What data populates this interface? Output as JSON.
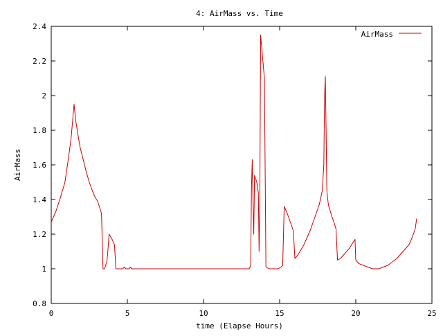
{
  "chart_data": {
    "type": "line",
    "title": "4: AirMass vs. Time",
    "xlabel": "time (Elapse Hours)",
    "ylabel": "AirMass",
    "xlim": [
      0,
      25
    ],
    "ylim": [
      0.8,
      2.4
    ],
    "x_ticks": [
      {
        "value": 0,
        "label": "0"
      },
      {
        "value": 5,
        "label": "5"
      },
      {
        "value": 10,
        "label": "10"
      },
      {
        "value": 15,
        "label": "15"
      },
      {
        "value": 20,
        "label": "20"
      },
      {
        "value": 25,
        "label": "25"
      }
    ],
    "y_ticks": [
      {
        "value": 0.8,
        "label": "0.8"
      },
      {
        "value": 1.0,
        "label": "1"
      },
      {
        "value": 1.2,
        "label": "1.2"
      },
      {
        "value": 1.4,
        "label": "1.4"
      },
      {
        "value": 1.6,
        "label": "1.6"
      },
      {
        "value": 1.8,
        "label": "1.8"
      },
      {
        "value": 2.0,
        "label": "2"
      },
      {
        "value": 2.2,
        "label": "2.2"
      },
      {
        "value": 2.4,
        "label": "2.4"
      }
    ],
    "grid": false,
    "legend_position": "top-right",
    "series": [
      {
        "name": "AirMass",
        "color": "#cc0000",
        "points": [
          [
            0.0,
            1.27
          ],
          [
            0.3,
            1.33
          ],
          [
            0.6,
            1.41
          ],
          [
            0.9,
            1.5
          ],
          [
            1.1,
            1.62
          ],
          [
            1.3,
            1.75
          ],
          [
            1.5,
            1.95
          ],
          [
            1.6,
            1.86
          ],
          [
            1.8,
            1.75
          ],
          [
            1.9,
            1.7
          ],
          [
            2.1,
            1.63
          ],
          [
            2.3,
            1.56
          ],
          [
            2.5,
            1.5
          ],
          [
            2.7,
            1.45
          ],
          [
            2.9,
            1.41
          ],
          [
            3.05,
            1.39
          ],
          [
            3.3,
            1.32
          ],
          [
            3.4,
            1.0
          ],
          [
            3.5,
            1.0
          ],
          [
            3.65,
            1.04
          ],
          [
            3.7,
            1.08
          ],
          [
            3.8,
            1.2
          ],
          [
            4.0,
            1.17
          ],
          [
            4.15,
            1.14
          ],
          [
            4.25,
            1.0
          ],
          [
            4.5,
            1.0
          ],
          [
            4.7,
            1.0
          ],
          [
            4.8,
            1.01
          ],
          [
            4.9,
            1.0
          ],
          [
            5.1,
            1.0
          ],
          [
            5.2,
            1.01
          ],
          [
            5.3,
            1.0
          ],
          [
            8.0,
            1.0
          ],
          [
            10.0,
            1.0
          ],
          [
            12.0,
            1.0
          ],
          [
            13.0,
            1.0
          ],
          [
            13.1,
            1.02
          ],
          [
            13.15,
            1.47
          ],
          [
            13.2,
            1.63
          ],
          [
            13.25,
            1.38
          ],
          [
            13.3,
            1.2
          ],
          [
            13.35,
            1.54
          ],
          [
            13.5,
            1.5
          ],
          [
            13.6,
            1.44
          ],
          [
            13.65,
            1.1
          ],
          [
            13.7,
            1.4
          ],
          [
            13.75,
            2.35
          ],
          [
            13.8,
            2.3
          ],
          [
            13.9,
            2.2
          ],
          [
            14.0,
            2.1
          ],
          [
            14.1,
            1.01
          ],
          [
            14.3,
            1.0
          ],
          [
            14.6,
            1.0
          ],
          [
            14.9,
            1.0
          ],
          [
            15.1,
            1.01
          ],
          [
            15.2,
            1.02
          ],
          [
            15.3,
            1.36
          ],
          [
            15.5,
            1.32
          ],
          [
            15.7,
            1.27
          ],
          [
            15.9,
            1.22
          ],
          [
            16.0,
            1.06
          ],
          [
            16.2,
            1.08
          ],
          [
            16.4,
            1.11
          ],
          [
            16.6,
            1.14
          ],
          [
            16.8,
            1.18
          ],
          [
            17.0,
            1.22
          ],
          [
            17.2,
            1.27
          ],
          [
            17.4,
            1.32
          ],
          [
            17.6,
            1.37
          ],
          [
            17.8,
            1.45
          ],
          [
            17.9,
            1.6
          ],
          [
            17.95,
            2.0
          ],
          [
            18.0,
            2.11
          ],
          [
            18.05,
            1.8
          ],
          [
            18.1,
            1.45
          ],
          [
            18.2,
            1.37
          ],
          [
            18.4,
            1.31
          ],
          [
            18.6,
            1.26
          ],
          [
            18.7,
            1.23
          ],
          [
            18.8,
            1.05
          ],
          [
            19.0,
            1.06
          ],
          [
            19.2,
            1.08
          ],
          [
            19.4,
            1.1
          ],
          [
            19.6,
            1.12
          ],
          [
            19.8,
            1.15
          ],
          [
            19.95,
            1.17
          ],
          [
            20.0,
            1.05
          ],
          [
            20.2,
            1.03
          ],
          [
            20.5,
            1.02
          ],
          [
            20.8,
            1.01
          ],
          [
            21.1,
            1.0
          ],
          [
            21.5,
            1.0
          ],
          [
            21.8,
            1.01
          ],
          [
            22.1,
            1.02
          ],
          [
            22.4,
            1.04
          ],
          [
            22.7,
            1.06
          ],
          [
            23.0,
            1.09
          ],
          [
            23.3,
            1.12
          ],
          [
            23.5,
            1.14
          ],
          [
            23.7,
            1.18
          ],
          [
            23.9,
            1.23
          ],
          [
            24.0,
            1.29
          ]
        ]
      }
    ]
  }
}
